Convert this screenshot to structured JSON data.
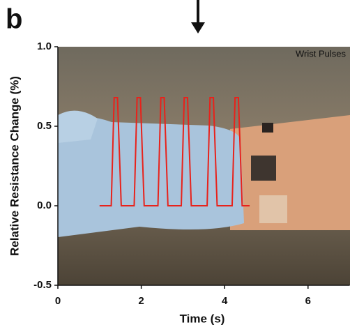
{
  "chart_data": {
    "type": "line",
    "panel_label": "b",
    "annotation": "Wrist Pulses",
    "x_label": "Time (s)",
    "y_label": "Relative Resistance Change (%)",
    "x": [
      1.0,
      1.28,
      1.35,
      1.43,
      1.52,
      1.83,
      1.9,
      1.98,
      2.07,
      2.4,
      2.47,
      2.55,
      2.64,
      2.96,
      3.03,
      3.11,
      3.2,
      3.58,
      3.65,
      3.73,
      3.82,
      4.18,
      4.25,
      4.33,
      4.42,
      4.6
    ],
    "series": [
      {
        "color": "#e8221b",
        "values": [
          0,
          0,
          0.68,
          0.68,
          0,
          0,
          0.68,
          0.68,
          0,
          0,
          0.68,
          0.68,
          0,
          0,
          0.68,
          0.68,
          0,
          0,
          0.68,
          0.68,
          0,
          0,
          0.68,
          0.68,
          0,
          0
        ]
      }
    ],
    "xlim": [
      0,
      7
    ],
    "xticks": [
      0,
      2,
      4,
      6
    ],
    "ylim": [
      -0.5,
      1.0
    ],
    "yticks": [
      {
        "value": -0.5,
        "label": "-0.5"
      },
      {
        "value": 0.0,
        "label": "0.0"
      },
      {
        "value": 0.5,
        "label": "0.5"
      },
      {
        "value": 1.0,
        "label": "1.0"
      }
    ]
  }
}
